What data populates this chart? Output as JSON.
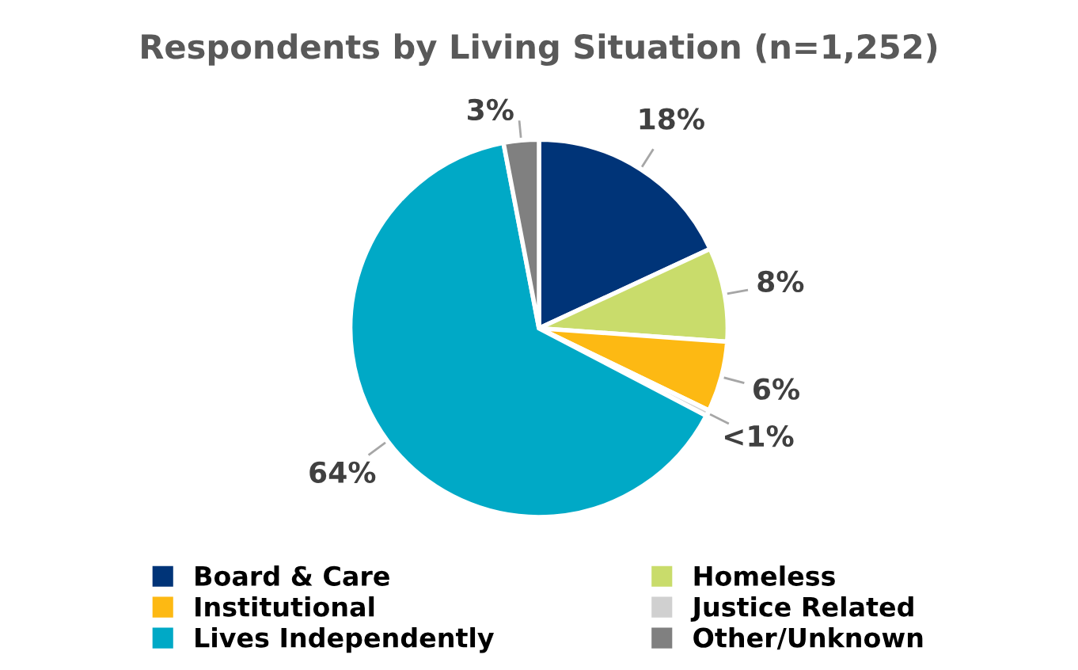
{
  "chart_data": {
    "type": "pie",
    "title": "Respondents by Living Situation (n=1,252)",
    "categories": [
      "Board & Care",
      "Homeless",
      "Institutional",
      "Justice Related",
      "Lives Independently",
      "Other/Unknown"
    ],
    "values": [
      18,
      8,
      6,
      0.5,
      64,
      3
    ],
    "value_labels": [
      "18%",
      "8%",
      "6%",
      "<1%",
      "64%",
      "3%"
    ],
    "colors": [
      "#003478",
      "#c9dc6b",
      "#fdb913",
      "#d0d0d0",
      "#00a9c6",
      "#808080"
    ],
    "legend": "bottom"
  }
}
